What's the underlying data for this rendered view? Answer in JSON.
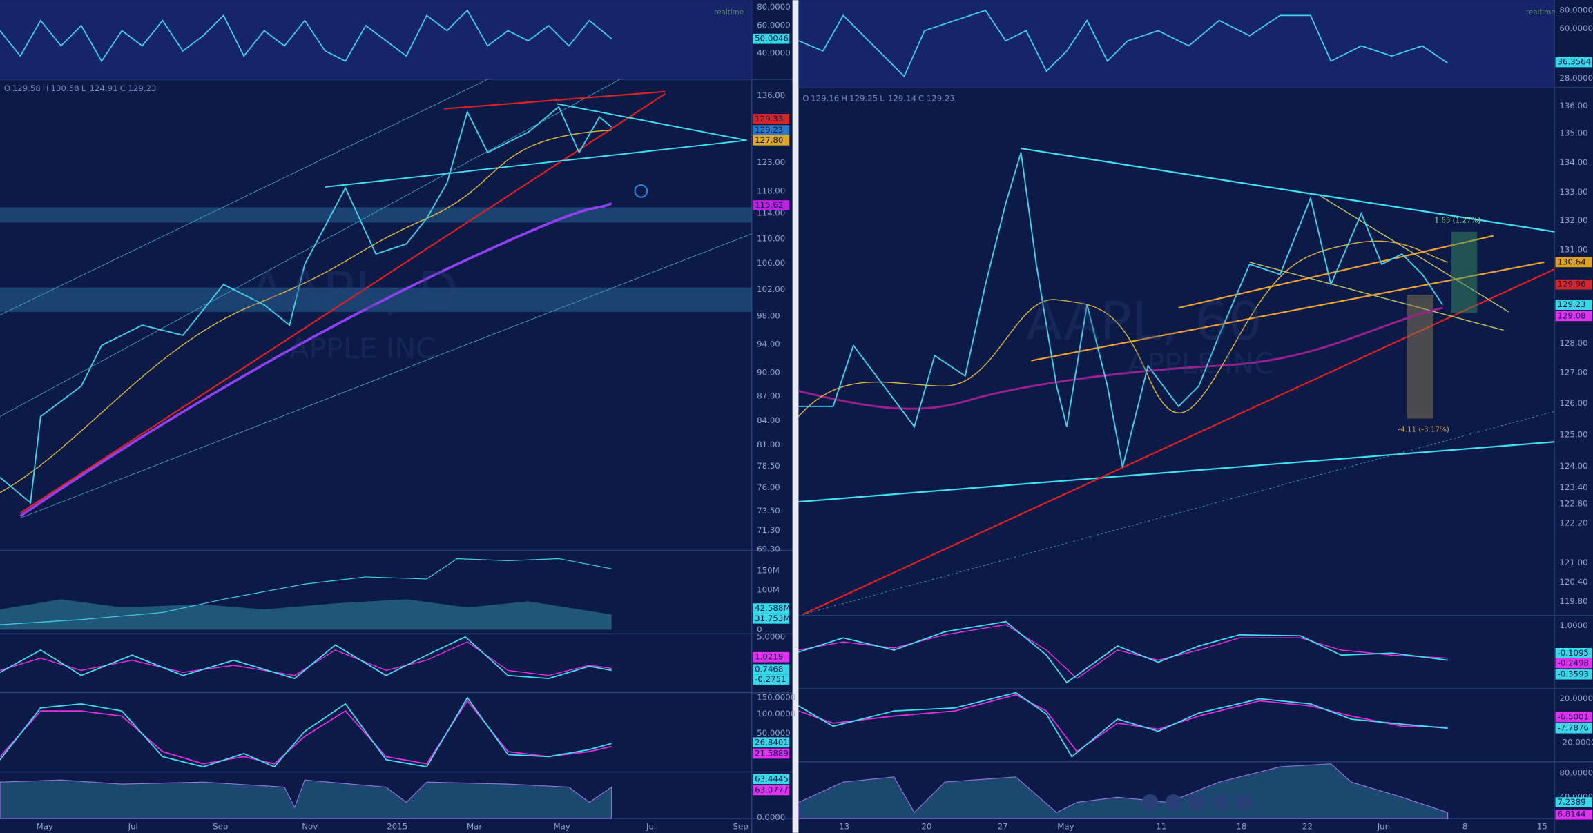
{
  "left": {
    "realtime": "realtime",
    "ohlc": [
      "O",
      "129.58",
      "H",
      "130.58",
      "L",
      "124.91",
      "C",
      "129.23"
    ],
    "symbol": "AAPL, D",
    "company": "APPLE INC",
    "rsi_axis": [
      "80.0000",
      "60.0000",
      "40.0000"
    ],
    "rsi_tags": [
      "50.0046"
    ],
    "price_axis": [
      "136.00",
      "123.00",
      "118.00",
      "114.00",
      "110.00",
      "106.00",
      "102.00",
      "98.00",
      "94.00",
      "90.00",
      "87.00",
      "84.00",
      "81.00",
      "78.50",
      "76.00",
      "73.50",
      "71.30",
      "69.30"
    ],
    "price_tags": [
      "129.33",
      "129.23",
      "127.80",
      "115.62"
    ],
    "volume_axis": [
      "150M",
      "100M",
      "0"
    ],
    "volume_tags": [
      "42.588M",
      "31.753M"
    ],
    "macd_axis": [
      "5.0000"
    ],
    "macd_tags": [
      "1.0219",
      "0.7468",
      "-0.2751"
    ],
    "stoch_axis": [
      "150.0000",
      "100.0000",
      "50.0000"
    ],
    "stoch_tags": [
      "26.8401",
      "21.5889"
    ],
    "bottom_axis": [
      "0.0000"
    ],
    "bottom_tags": [
      "63.4445",
      "63.0777"
    ],
    "x_axis": [
      "May",
      "Jul",
      "Sep",
      "Nov",
      "2015",
      "Mar",
      "May",
      "Jul",
      "Sep"
    ]
  },
  "right": {
    "realtime": "realtime",
    "ohlc": [
      "O",
      "129.16",
      "H",
      "129.25",
      "L",
      "129.14",
      "C",
      "129.23"
    ],
    "symbol": "AAPL, 60",
    "company": "APPLE INC",
    "rsi_axis": [
      "80.0000",
      "60.0000",
      "28.0000"
    ],
    "rsi_tags": [
      "36.3564"
    ],
    "price_axis": [
      "136.00",
      "135.00",
      "134.00",
      "133.00",
      "132.00",
      "131.00",
      "128.00",
      "127.00",
      "126.00",
      "125.00",
      "124.00",
      "123.40",
      "122.80",
      "122.20",
      "121.00",
      "120.40",
      "119.80"
    ],
    "price_tags": [
      "130.64",
      "129.96",
      "129.23",
      "129.08"
    ],
    "macd_axis": [
      "1.0000"
    ],
    "macd_tags": [
      "-0.1095",
      "-0.2498",
      "-0.3593"
    ],
    "stoch_axis": [
      "20.0000",
      "-20.0000"
    ],
    "stoch_tags": [
      "-6.5001",
      "-7.7876"
    ],
    "bottom_axis": [
      "80.0000",
      "40.0000"
    ],
    "bottom_tags": [
      "7.2389",
      "6.8144"
    ],
    "x_axis": [
      "13",
      "20",
      "27",
      "May",
      "11",
      "18",
      "22",
      "Jun",
      "8",
      "15"
    ],
    "annotations": [
      "1.65 (1.27%)",
      "-4.11 (-3.17%)"
    ]
  }
}
